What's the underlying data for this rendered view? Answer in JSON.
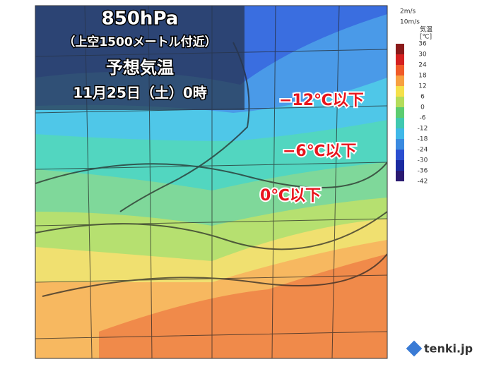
{
  "header": {
    "title": "850hPa",
    "subtitle": "（上空1500メートル付近）",
    "heading": "予想気温",
    "datetime": "11月25日（土）0時"
  },
  "annotations": [
    "−12℃以下",
    "−6℃以下",
    "0℃以下"
  ],
  "legend": {
    "wind": [
      "2m/s",
      "10m/s"
    ],
    "title": "気温",
    "unit": "[℃]",
    "ticks": [
      36,
      30,
      24,
      18,
      12,
      6,
      0,
      -6,
      -12,
      -18,
      -24,
      -30,
      -36,
      -42
    ]
  },
  "footer": {
    "brand": "tenki.jp"
  }
}
